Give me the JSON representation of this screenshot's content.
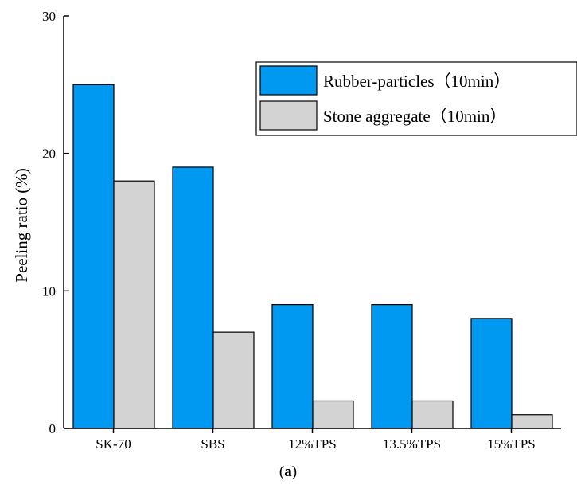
{
  "chart_data": {
    "type": "bar",
    "categories": [
      "SK-70",
      "SBS",
      "12%TPS",
      "13.5%TPS",
      "15%TPS"
    ],
    "series": [
      {
        "name": "Rubber-particles（10min）",
        "values": [
          25,
          19,
          9,
          9,
          8
        ],
        "color": "#0099f2"
      },
      {
        "name": "Stone aggregate（10min）",
        "values": [
          18,
          7,
          2,
          2,
          1
        ],
        "color": "#d3d3d3"
      }
    ],
    "ylabel": "Peeling ratio (%)",
    "xlabel": "",
    "ylim": [
      0,
      30
    ],
    "yticks": [
      0,
      10,
      20,
      30
    ],
    "grid": false,
    "legend_position": "top-right"
  },
  "caption": {
    "open": "(",
    "letter": "a",
    "close": ")"
  }
}
